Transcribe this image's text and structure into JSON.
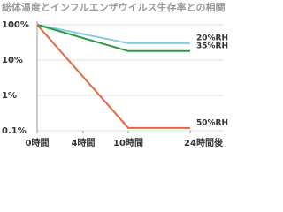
{
  "chart_data": {
    "type": "line",
    "title": "総体温度とインフルエンザウイルス生存率との相関",
    "x": [
      0,
      10,
      24
    ],
    "series": [
      {
        "name": "20%RH",
        "color": "#86cbe6",
        "values": [
          100,
          30,
          30
        ]
      },
      {
        "name": "35%RH",
        "color": "#2a9a3e",
        "values": [
          100,
          18,
          18
        ]
      },
      {
        "name": "50%RH",
        "color": "#e2673f",
        "values": [
          100,
          0.12,
          0.12
        ]
      }
    ],
    "xlim": [
      0,
      24
    ],
    "xticks": [
      {
        "value": 0,
        "label": "0時間"
      },
      {
        "value": 4,
        "label": "4時間"
      },
      {
        "value": 10,
        "label": "10時間"
      },
      {
        "value": 24,
        "label": "24時間後"
      }
    ],
    "ylim": [
      0.1,
      100
    ],
    "log_y": true,
    "yticks": [
      {
        "value": 100,
        "label": "100%"
      },
      {
        "value": 10,
        "label": "10%"
      },
      {
        "value": 1,
        "label": "1%"
      },
      {
        "value": 0.1,
        "label": "0.1%"
      }
    ],
    "grid": true
  }
}
